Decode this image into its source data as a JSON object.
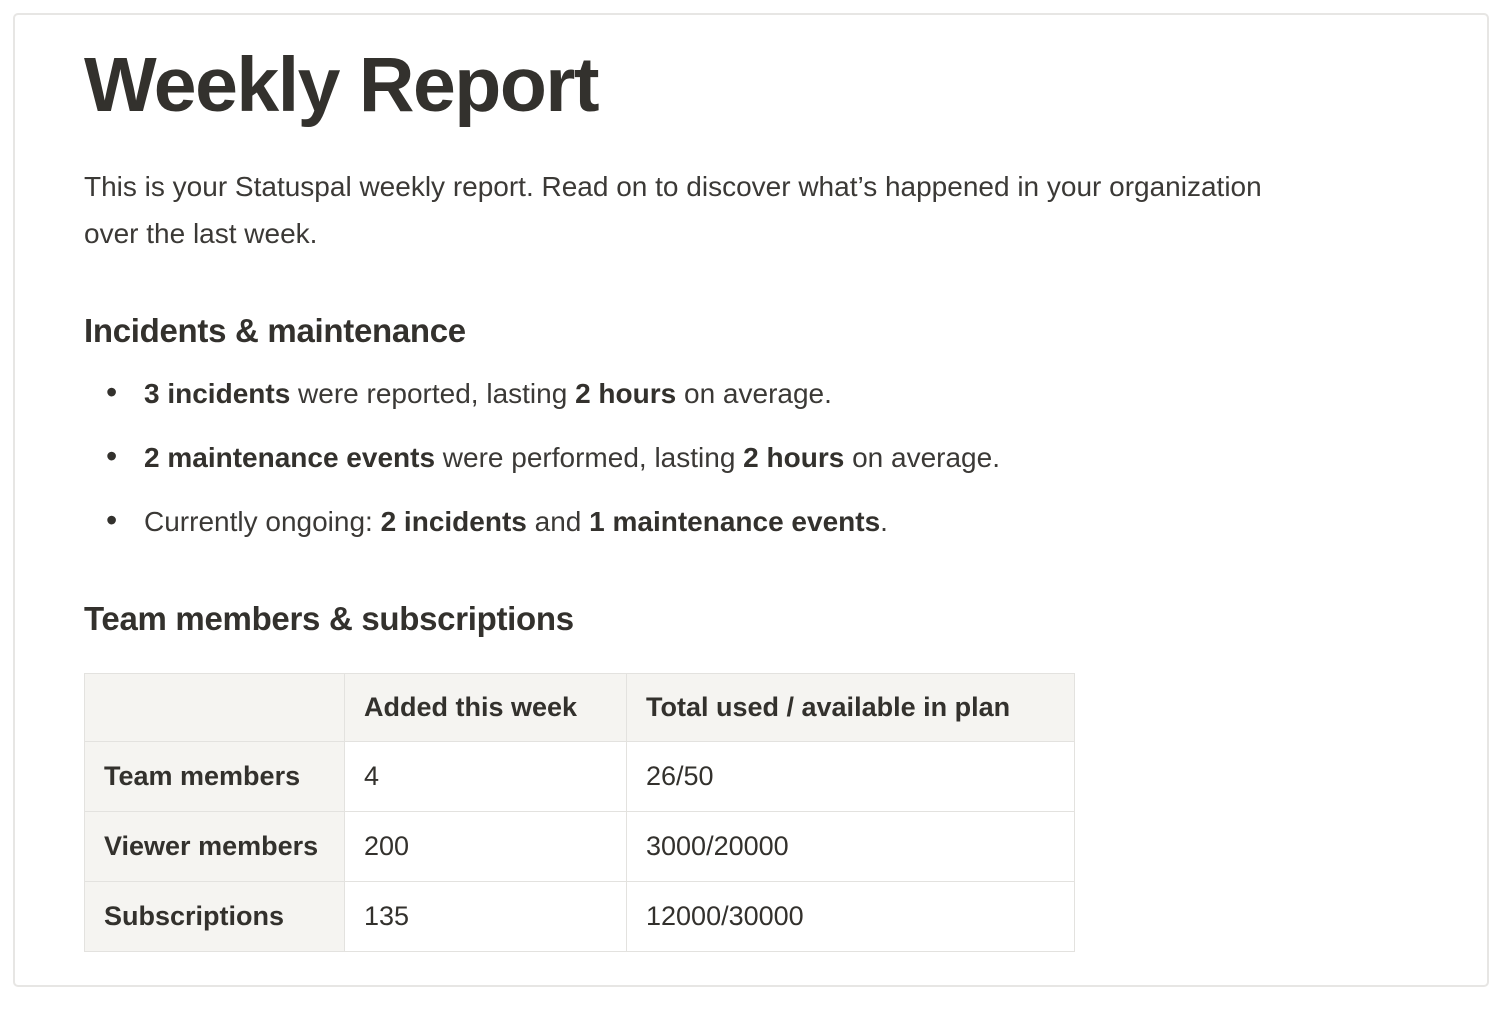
{
  "report": {
    "title": "Weekly Report",
    "intro": "This is your Statuspal weekly report. Read on to discover what’s happened in your organization over the last week."
  },
  "incidents_section": {
    "heading": "Incidents & maintenance",
    "bullets": [
      {
        "segments": [
          {
            "text": "3 incidents",
            "bold": true
          },
          {
            "text": " were reported, lasting ",
            "bold": false
          },
          {
            "text": "2 hours",
            "bold": true
          },
          {
            "text": " on average.",
            "bold": false
          }
        ]
      },
      {
        "segments": [
          {
            "text": "2 maintenance events",
            "bold": true
          },
          {
            "text": " were performed, lasting ",
            "bold": false
          },
          {
            "text": "2 hours",
            "bold": true
          },
          {
            "text": " on average.",
            "bold": false
          }
        ]
      },
      {
        "segments": [
          {
            "text": "Currently ongoing: ",
            "bold": false
          },
          {
            "text": "2 incidents",
            "bold": true
          },
          {
            "text": " and ",
            "bold": false
          },
          {
            "text": "1 maintenance events",
            "bold": true
          },
          {
            "text": ".",
            "bold": false
          }
        ]
      }
    ]
  },
  "team_section": {
    "heading": "Team members & subscriptions",
    "table": {
      "headers": [
        "",
        "Added this week",
        "Total used / available in plan"
      ],
      "rows": [
        {
          "label": "Team members",
          "added": "4",
          "total": "26/50"
        },
        {
          "label": "Viewer members",
          "added": "200",
          "total": "3000/20000"
        },
        {
          "label": "Subscriptions",
          "added": "135",
          "total": "12000/30000"
        }
      ]
    }
  },
  "colors": {
    "text": "#33312d",
    "muted_text": "#3b3936",
    "page_bg": "#ffffff",
    "card_border": "#e7e6e4",
    "table_header_bg": "#f5f4f1",
    "table_border": "#e3e2df"
  }
}
